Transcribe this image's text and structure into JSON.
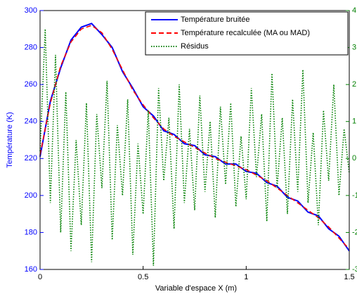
{
  "chart_data": {
    "type": "line",
    "xlabel": "Variable d'espace X (m)",
    "ylabel": "Température (K)",
    "xlim": [
      0,
      1.5
    ],
    "xticks": [
      0,
      0.5,
      1,
      1.5
    ],
    "ylim": [
      160,
      300
    ],
    "yticks": [
      160,
      180,
      200,
      220,
      240,
      260,
      280,
      300
    ],
    "y2lim": [
      -3,
      4
    ],
    "y2ticks": [
      -3,
      -2,
      -1,
      0,
      1,
      2,
      3,
      4
    ],
    "ycolor": "#0000ff",
    "y2color": "#007f00",
    "legend": "upper right",
    "grid": false,
    "series": [
      {
        "name": "Température bruitée",
        "color": "#0000ff",
        "style": "solid",
        "x": [
          0,
          0.05,
          0.1,
          0.15,
          0.2,
          0.25,
          0.3,
          0.35,
          0.4,
          0.45,
          0.5,
          0.55,
          0.6,
          0.65,
          0.7,
          0.75,
          0.8,
          0.85,
          0.9,
          0.95,
          1,
          1.05,
          1.1,
          1.15,
          1.2,
          1.25,
          1.3,
          1.35,
          1.4,
          1.45,
          1.5
        ],
        "values": [
          221,
          251,
          269,
          284,
          291,
          293,
          287,
          280,
          267,
          258,
          248,
          243,
          235,
          233,
          228,
          227,
          222,
          221,
          217,
          217,
          213,
          212,
          207,
          205,
          199,
          197,
          191,
          189,
          182,
          178,
          170
        ]
      },
      {
        "name": "Température recalculée (MA ou MAD)",
        "color": "#ff0000",
        "style": "dashed",
        "x": [
          0,
          0.05,
          0.1,
          0.15,
          0.2,
          0.25,
          0.3,
          0.35,
          0.4,
          0.45,
          0.5,
          0.55,
          0.6,
          0.65,
          0.7,
          0.75,
          0.8,
          0.85,
          0.9,
          0.95,
          1,
          1.05,
          1.1,
          1.15,
          1.2,
          1.25,
          1.3,
          1.35,
          1.4,
          1.45,
          1.5
        ],
        "values": [
          222,
          250,
          270,
          283,
          290,
          292,
          288,
          279,
          268,
          257,
          249,
          242,
          236,
          232,
          229,
          226,
          223,
          220,
          218,
          216,
          214,
          211,
          208,
          204,
          200,
          196,
          192,
          188,
          183,
          177,
          171
        ]
      },
      {
        "name": "Résidus",
        "color": "#007f00",
        "style": "dotted",
        "axis": "y2",
        "x": [
          0,
          0.025,
          0.05,
          0.075,
          0.1,
          0.125,
          0.15,
          0.175,
          0.2,
          0.225,
          0.25,
          0.275,
          0.3,
          0.325,
          0.35,
          0.375,
          0.4,
          0.425,
          0.45,
          0.475,
          0.5,
          0.525,
          0.55,
          0.575,
          0.6,
          0.625,
          0.65,
          0.675,
          0.7,
          0.725,
          0.75,
          0.775,
          0.8,
          0.825,
          0.85,
          0.875,
          0.9,
          0.925,
          0.95,
          0.975,
          1,
          1.025,
          1.05,
          1.075,
          1.1,
          1.125,
          1.15,
          1.175,
          1.2,
          1.225,
          1.25,
          1.275,
          1.3,
          1.325,
          1.35,
          1.375,
          1.4,
          1.425,
          1.45,
          1.475,
          1.5
        ],
        "values": [
          0.2,
          3.5,
          -1.2,
          2.8,
          -2.0,
          1.8,
          -2.5,
          0.5,
          -1.8,
          1.5,
          -2.8,
          1.2,
          -0.8,
          2.1,
          -2.2,
          0.9,
          -1.0,
          1.6,
          -2.6,
          0.4,
          -1.5,
          1.3,
          -2.9,
          1.9,
          -0.6,
          1.1,
          -1.9,
          2.0,
          -1.2,
          0.8,
          -1.4,
          1.7,
          -0.9,
          1.0,
          -1.6,
          1.4,
          -0.7,
          1.5,
          -1.3,
          0.6,
          -1.1,
          1.9,
          -0.5,
          1.2,
          -1.7,
          2.3,
          -0.8,
          1.1,
          -1.5,
          1.6,
          -0.9,
          2.4,
          -1.2,
          0.7,
          -1.8,
          1.3,
          -0.6,
          2.0,
          -1.0,
          0.8,
          -0.4
        ]
      }
    ]
  }
}
